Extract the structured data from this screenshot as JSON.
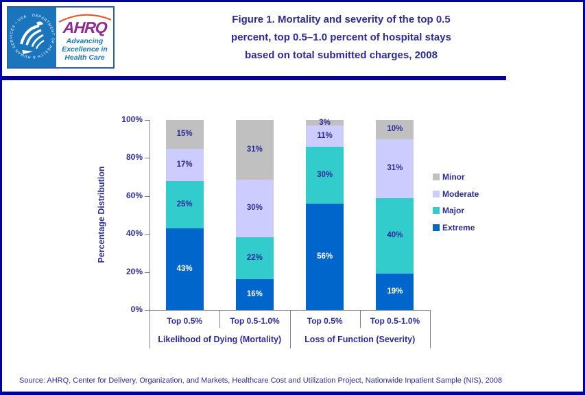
{
  "colors": {
    "frame_navy": "#0000A0",
    "text_navy": "#2B2B9B",
    "axis_gray": "#808080",
    "seal_blue": "#1B75BC",
    "ahrq_purple": "#8B2A8F",
    "arc_orange": "#E8581F"
  },
  "header": {
    "logo": {
      "org_abbrev": "AHRQ",
      "tagline": "Advancing\nExcellence in\nHealth Care",
      "seal_text": "DEPARTMENT OF HEALTH & HUMAN SERVICES • USA"
    },
    "title": "Figure 1. Mortality and severity of the top 0.5\npercent, top  0.5–1.0 percent of hospital stays\nbased on total submitted charges, 2008"
  },
  "chart_data": {
    "type": "bar",
    "stacked": true,
    "title": "",
    "ylabel": "Percentage Distribution",
    "xlabel": "",
    "ylim": [
      0,
      100
    ],
    "y_ticks": [
      "100%",
      "80%",
      "60%",
      "40%",
      "20%",
      "0%"
    ],
    "grid": false,
    "legend_position": "right",
    "legend_order": [
      "Minor",
      "Moderate",
      "Major",
      "Extreme"
    ],
    "groups": [
      {
        "label": "Likelihood of Dying (Mortality)",
        "categories": [
          "Top 0.5%",
          "Top 0.5-1.0%"
        ]
      },
      {
        "label": "Loss of Function (Severity)",
        "categories": [
          "Top 0.5%",
          "Top 0.5-1.0%"
        ]
      }
    ],
    "series": [
      {
        "name": "Extreme",
        "color": "#0066CC",
        "label_color": "#FFFFFF",
        "values": [
          43,
          16,
          56,
          19
        ]
      },
      {
        "name": "Major",
        "color": "#33CCCC",
        "label_color": "#2B2B9B",
        "values": [
          25,
          22,
          30,
          40
        ]
      },
      {
        "name": "Moderate",
        "color": "#CCCCFF",
        "label_color": "#2B2B9B",
        "values": [
          17,
          30,
          11,
          31
        ]
      },
      {
        "name": "Minor",
        "color": "#C0C0C0",
        "label_color": "#2B2B9B",
        "values": [
          15,
          31,
          3,
          10
        ]
      }
    ],
    "value_suffix": "%"
  },
  "footer": {
    "source": "Source: AHRQ, Center for Delivery, Organization, and Markets, Healthcare Cost and Utilization Project, Nationwide Inpatient Sample (NIS), 2008"
  }
}
